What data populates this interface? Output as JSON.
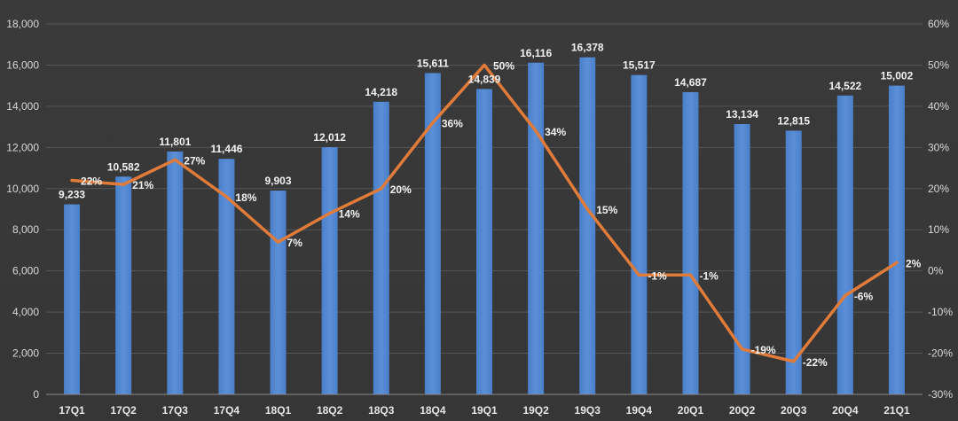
{
  "chart_data": {
    "type": "bar",
    "title": "",
    "categories": [
      "17Q1",
      "17Q2",
      "17Q3",
      "17Q4",
      "18Q1",
      "18Q2",
      "18Q3",
      "18Q4",
      "19Q1",
      "19Q2",
      "19Q3",
      "19Q4",
      "20Q1",
      "20Q2",
      "20Q3",
      "20Q4",
      "21Q1"
    ],
    "series": [
      {
        "type": "bar",
        "axis": "left",
        "values": [
          9233,
          10582,
          11801,
          11446,
          9903,
          12012,
          14218,
          15611,
          14839,
          16116,
          16378,
          15517,
          14687,
          13134,
          12815,
          14522,
          15002
        ],
        "labels": [
          "9,233",
          "10,582",
          "11,801",
          "11,446",
          "9,903",
          "12,012",
          "14,218",
          "15,611",
          "14,839",
          "16,116",
          "16,378",
          "15,517",
          "14,687",
          "13,134",
          "12,815",
          "14,522",
          "15,002"
        ],
        "color": "#5b8fd6"
      },
      {
        "type": "line",
        "axis": "right",
        "values": [
          22,
          21,
          27,
          18,
          7,
          14,
          20,
          36,
          50,
          34,
          15,
          -1,
          -1,
          -19,
          -22,
          -6,
          2
        ],
        "labels": [
          "22%",
          "21%",
          "27%",
          "18%",
          "7%",
          "14%",
          "20%",
          "36%",
          "50%",
          "34%",
          "15%",
          "-1%",
          "-1%",
          "-19%",
          "-22%",
          "-6%",
          "2%"
        ],
        "color": "#e07b39"
      }
    ],
    "left_axis": {
      "ylim": [
        0,
        18000
      ],
      "ticks": [
        "0",
        "2,000",
        "4,000",
        "6,000",
        "8,000",
        "10,000",
        "12,000",
        "14,000",
        "16,000",
        "18,000"
      ]
    },
    "right_axis": {
      "ylim": [
        -30,
        60
      ],
      "ticks": [
        "-30%",
        "-20%",
        "-10%",
        "0%",
        "10%",
        "20%",
        "30%",
        "40%",
        "50%",
        "60%"
      ]
    },
    "grid": true,
    "legend": "none"
  }
}
